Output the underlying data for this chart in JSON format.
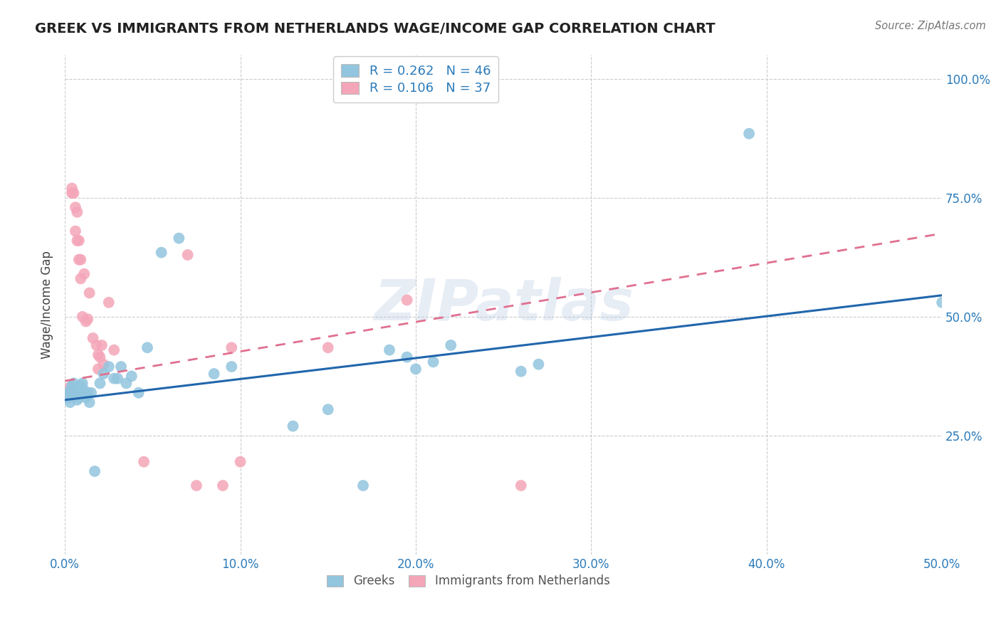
{
  "title": "GREEK VS IMMIGRANTS FROM NETHERLANDS WAGE/INCOME GAP CORRELATION CHART",
  "source": "Source: ZipAtlas.com",
  "ylabel": "Wage/Income Gap",
  "xlim": [
    0.0,
    0.5
  ],
  "ylim": [
    0.0,
    1.05
  ],
  "x_tick_labels": [
    "0.0%",
    "10.0%",
    "20.0%",
    "30.0%",
    "40.0%",
    "50.0%"
  ],
  "x_tick_vals": [
    0.0,
    0.1,
    0.2,
    0.3,
    0.4,
    0.5
  ],
  "y_tick_labels_right": [
    "25.0%",
    "50.0%",
    "75.0%",
    "100.0%"
  ],
  "y_tick_vals_right": [
    0.25,
    0.5,
    0.75,
    1.0
  ],
  "blue_color": "#92c5de",
  "blue_line_color": "#2166ac",
  "pink_color": "#f4a6b8",
  "pink_line_color": "#e07090",
  "legend_R1": "R = 0.262",
  "legend_N1": "N = 46",
  "legend_R2": "R = 0.106",
  "legend_N2": "N = 37",
  "watermark": "ZIPatlas",
  "label1": "Greeks",
  "label2": "Immigrants from Netherlands",
  "blue_x": [
    0.001,
    0.002,
    0.003,
    0.003,
    0.004,
    0.005,
    0.005,
    0.006,
    0.007,
    0.007,
    0.008,
    0.009,
    0.01,
    0.01,
    0.011,
    0.012,
    0.013,
    0.014,
    0.015,
    0.017,
    0.02,
    0.022,
    0.025,
    0.028,
    0.03,
    0.032,
    0.035,
    0.038,
    0.042,
    0.047,
    0.055,
    0.065,
    0.085,
    0.095,
    0.13,
    0.15,
    0.17,
    0.185,
    0.195,
    0.2,
    0.21,
    0.22,
    0.26,
    0.27,
    0.39,
    0.5
  ],
  "blue_y": [
    0.335,
    0.33,
    0.32,
    0.345,
    0.355,
    0.345,
    0.36,
    0.34,
    0.325,
    0.35,
    0.33,
    0.355,
    0.34,
    0.36,
    0.345,
    0.33,
    0.34,
    0.32,
    0.34,
    0.175,
    0.36,
    0.38,
    0.395,
    0.37,
    0.37,
    0.395,
    0.36,
    0.375,
    0.34,
    0.435,
    0.635,
    0.665,
    0.38,
    0.395,
    0.27,
    0.305,
    0.145,
    0.43,
    0.415,
    0.39,
    0.405,
    0.44,
    0.385,
    0.4,
    0.885,
    0.53
  ],
  "pink_x": [
    0.001,
    0.002,
    0.003,
    0.004,
    0.004,
    0.005,
    0.006,
    0.006,
    0.007,
    0.007,
    0.008,
    0.008,
    0.009,
    0.009,
    0.01,
    0.011,
    0.012,
    0.013,
    0.014,
    0.016,
    0.018,
    0.019,
    0.019,
    0.02,
    0.021,
    0.022,
    0.025,
    0.028,
    0.045,
    0.07,
    0.075,
    0.09,
    0.095,
    0.1,
    0.15,
    0.195,
    0.26
  ],
  "pink_y": [
    0.335,
    0.35,
    0.345,
    0.76,
    0.77,
    0.76,
    0.73,
    0.68,
    0.66,
    0.72,
    0.62,
    0.66,
    0.58,
    0.62,
    0.5,
    0.59,
    0.49,
    0.495,
    0.55,
    0.455,
    0.44,
    0.39,
    0.42,
    0.415,
    0.44,
    0.4,
    0.53,
    0.43,
    0.195,
    0.63,
    0.145,
    0.145,
    0.435,
    0.195,
    0.435,
    0.535,
    0.145
  ]
}
